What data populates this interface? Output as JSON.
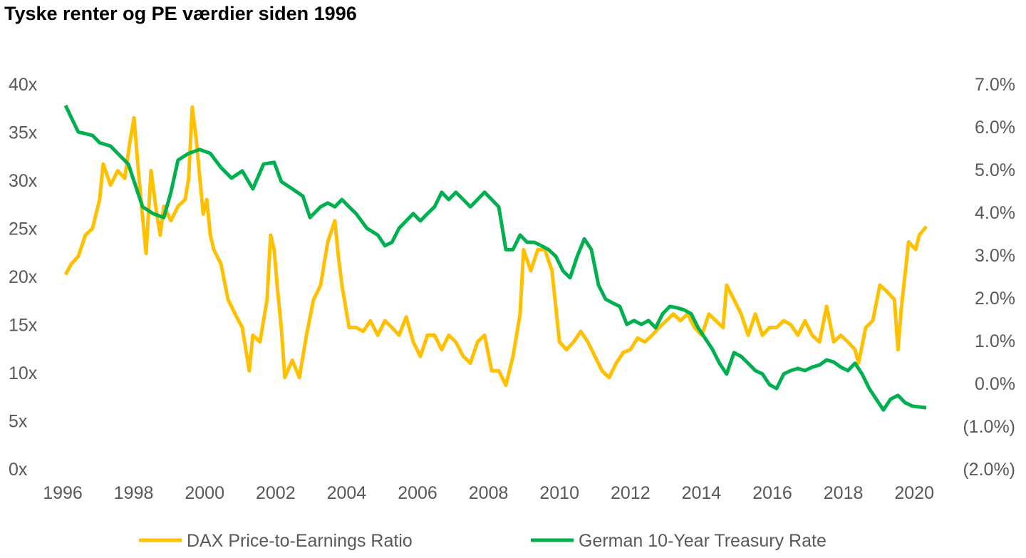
{
  "chart_data": {
    "type": "line",
    "title": "Tyske renter og PE værdier siden 1996",
    "xlabel": "",
    "ylabel": "",
    "xlim": [
      1996,
      2020.5
    ],
    "ylim_left": [
      0,
      40
    ],
    "ylim_right": [
      -2.0,
      7.0
    ],
    "grid": false,
    "legend_position": "bottom",
    "x_ticks": [
      "1996",
      "1998",
      "2000",
      "2002",
      "2004",
      "2006",
      "2008",
      "2010",
      "2012",
      "2014",
      "2016",
      "2018",
      "2020"
    ],
    "y_left_ticks": [
      "0x",
      "5x",
      "10x",
      "15x",
      "20x",
      "25x",
      "30x",
      "35x",
      "40x"
    ],
    "y_right_ticks": [
      "(2.0%)",
      "(1.0%)",
      "0.0%",
      "1.0%",
      "2.0%",
      "3.0%",
      "4.0%",
      "5.0%",
      "6.0%",
      "7.0%"
    ],
    "series": [
      {
        "name": "DAX Price-to-Earnings Ratio",
        "axis": "left",
        "color": "#FFC000",
        "points": [
          [
            1996.08,
            20.2
          ],
          [
            1996.24,
            21.3
          ],
          [
            1996.44,
            22.1
          ],
          [
            1996.64,
            24.3
          ],
          [
            1996.84,
            25.0
          ],
          [
            1997.04,
            28.0
          ],
          [
            1997.14,
            31.7
          ],
          [
            1997.35,
            29.5
          ],
          [
            1997.55,
            31.0
          ],
          [
            1997.75,
            30.2
          ],
          [
            1997.89,
            33.9
          ],
          [
            1998.01,
            36.5
          ],
          [
            1998.15,
            30.2
          ],
          [
            1998.35,
            22.4
          ],
          [
            1998.49,
            31.0
          ],
          [
            1998.65,
            26.5
          ],
          [
            1998.75,
            24.3
          ],
          [
            1998.85,
            27.3
          ],
          [
            1999.05,
            25.8
          ],
          [
            1999.25,
            27.3
          ],
          [
            1999.45,
            28.0
          ],
          [
            1999.55,
            30.2
          ],
          [
            1999.65,
            37.6
          ],
          [
            1999.75,
            34.7
          ],
          [
            1999.96,
            26.5
          ],
          [
            2000.06,
            28.0
          ],
          [
            2000.16,
            24.3
          ],
          [
            2000.26,
            22.8
          ],
          [
            2000.46,
            21.3
          ],
          [
            2000.66,
            17.6
          ],
          [
            2000.86,
            16.1
          ],
          [
            2001.06,
            14.7
          ],
          [
            2001.26,
            10.2
          ],
          [
            2001.36,
            13.9
          ],
          [
            2001.56,
            13.2
          ],
          [
            2001.76,
            17.6
          ],
          [
            2001.86,
            24.3
          ],
          [
            2001.96,
            22.8
          ],
          [
            2002.06,
            18.4
          ],
          [
            2002.16,
            14.7
          ],
          [
            2002.26,
            9.5
          ],
          [
            2002.47,
            11.3
          ],
          [
            2002.67,
            9.5
          ],
          [
            2002.87,
            13.9
          ],
          [
            2003.07,
            17.6
          ],
          [
            2003.27,
            19.1
          ],
          [
            2003.47,
            23.6
          ],
          [
            2003.67,
            25.8
          ],
          [
            2003.77,
            22.1
          ],
          [
            2003.87,
            19.1
          ],
          [
            2004.07,
            14.7
          ],
          [
            2004.27,
            14.7
          ],
          [
            2004.47,
            14.3
          ],
          [
            2004.67,
            15.4
          ],
          [
            2004.88,
            13.9
          ],
          [
            2005.08,
            15.4
          ],
          [
            2005.28,
            14.7
          ],
          [
            2005.48,
            13.9
          ],
          [
            2005.68,
            15.8
          ],
          [
            2005.88,
            13.2
          ],
          [
            2006.08,
            11.7
          ],
          [
            2006.28,
            13.9
          ],
          [
            2006.48,
            13.9
          ],
          [
            2006.68,
            12.4
          ],
          [
            2006.88,
            13.9
          ],
          [
            2007.08,
            13.2
          ],
          [
            2007.29,
            11.7
          ],
          [
            2007.49,
            11.0
          ],
          [
            2007.69,
            13.2
          ],
          [
            2007.89,
            13.9
          ],
          [
            2008.09,
            10.2
          ],
          [
            2008.29,
            10.2
          ],
          [
            2008.49,
            8.7
          ],
          [
            2008.69,
            11.7
          ],
          [
            2008.89,
            16.1
          ],
          [
            2008.99,
            22.8
          ],
          [
            2009.19,
            20.6
          ],
          [
            2009.39,
            22.8
          ],
          [
            2009.59,
            22.8
          ],
          [
            2009.79,
            20.6
          ],
          [
            2010.0,
            13.2
          ],
          [
            2010.2,
            12.4
          ],
          [
            2010.4,
            13.2
          ],
          [
            2010.6,
            14.3
          ],
          [
            2010.8,
            13.2
          ],
          [
            2011.0,
            11.7
          ],
          [
            2011.2,
            10.2
          ],
          [
            2011.4,
            9.5
          ],
          [
            2011.6,
            11.0
          ],
          [
            2011.8,
            12.1
          ],
          [
            2012.0,
            12.4
          ],
          [
            2012.2,
            13.6
          ],
          [
            2012.41,
            13.2
          ],
          [
            2012.61,
            13.9
          ],
          [
            2012.81,
            14.7
          ],
          [
            2013.01,
            15.4
          ],
          [
            2013.21,
            16.1
          ],
          [
            2013.41,
            15.4
          ],
          [
            2013.61,
            16.1
          ],
          [
            2013.81,
            14.7
          ],
          [
            2014.01,
            13.9
          ],
          [
            2014.21,
            16.1
          ],
          [
            2014.41,
            15.4
          ],
          [
            2014.61,
            14.7
          ],
          [
            2014.71,
            19.1
          ],
          [
            2014.92,
            17.6
          ],
          [
            2015.12,
            16.1
          ],
          [
            2015.32,
            13.9
          ],
          [
            2015.52,
            16.1
          ],
          [
            2015.72,
            13.9
          ],
          [
            2015.92,
            14.7
          ],
          [
            2016.12,
            14.7
          ],
          [
            2016.32,
            15.4
          ],
          [
            2016.52,
            15.0
          ],
          [
            2016.72,
            13.9
          ],
          [
            2016.92,
            15.4
          ],
          [
            2017.12,
            13.9
          ],
          [
            2017.33,
            13.2
          ],
          [
            2017.53,
            16.9
          ],
          [
            2017.73,
            13.2
          ],
          [
            2017.93,
            13.9
          ],
          [
            2018.13,
            13.2
          ],
          [
            2018.33,
            12.4
          ],
          [
            2018.43,
            11.0
          ],
          [
            2018.63,
            14.7
          ],
          [
            2018.83,
            15.4
          ],
          [
            2019.03,
            19.1
          ],
          [
            2019.24,
            18.4
          ],
          [
            2019.44,
            17.6
          ],
          [
            2019.54,
            12.4
          ],
          [
            2019.64,
            16.9
          ],
          [
            2019.84,
            23.6
          ],
          [
            2020.04,
            22.8
          ],
          [
            2020.14,
            24.3
          ],
          [
            2020.34,
            25.2
          ]
        ]
      },
      {
        "name": "German 10-Year Treasury Rate",
        "axis": "right",
        "color": "#00B050",
        "points": [
          [
            1996.08,
            6.5
          ],
          [
            1996.24,
            6.22
          ],
          [
            1996.44,
            5.88
          ],
          [
            1996.84,
            5.8
          ],
          [
            1997.04,
            5.63
          ],
          [
            1997.35,
            5.55
          ],
          [
            1997.55,
            5.38
          ],
          [
            1997.85,
            5.13
          ],
          [
            1998.05,
            4.63
          ],
          [
            1998.25,
            4.13
          ],
          [
            1998.55,
            3.97
          ],
          [
            1998.85,
            3.88
          ],
          [
            1999.05,
            4.47
          ],
          [
            1999.25,
            5.22
          ],
          [
            1999.55,
            5.38
          ],
          [
            1999.86,
            5.47
          ],
          [
            2000.16,
            5.38
          ],
          [
            2000.46,
            5.05
          ],
          [
            2000.76,
            4.8
          ],
          [
            2001.06,
            4.97
          ],
          [
            2001.36,
            4.55
          ],
          [
            2001.66,
            5.13
          ],
          [
            2001.96,
            5.17
          ],
          [
            2002.16,
            4.72
          ],
          [
            2002.47,
            4.55
          ],
          [
            2002.77,
            4.38
          ],
          [
            2002.97,
            3.88
          ],
          [
            2003.27,
            4.13
          ],
          [
            2003.47,
            4.22
          ],
          [
            2003.67,
            4.13
          ],
          [
            2003.87,
            4.3
          ],
          [
            2004.07,
            4.13
          ],
          [
            2004.27,
            3.97
          ],
          [
            2004.57,
            3.63
          ],
          [
            2004.88,
            3.47
          ],
          [
            2005.08,
            3.22
          ],
          [
            2005.28,
            3.3
          ],
          [
            2005.48,
            3.63
          ],
          [
            2005.68,
            3.8
          ],
          [
            2005.88,
            3.97
          ],
          [
            2006.08,
            3.8
          ],
          [
            2006.28,
            3.97
          ],
          [
            2006.48,
            4.13
          ],
          [
            2006.68,
            4.47
          ],
          [
            2006.88,
            4.3
          ],
          [
            2007.08,
            4.47
          ],
          [
            2007.29,
            4.3
          ],
          [
            2007.49,
            4.13
          ],
          [
            2007.69,
            4.3
          ],
          [
            2007.89,
            4.47
          ],
          [
            2008.09,
            4.3
          ],
          [
            2008.29,
            4.13
          ],
          [
            2008.49,
            3.13
          ],
          [
            2008.69,
            3.13
          ],
          [
            2008.89,
            3.47
          ],
          [
            2009.09,
            3.3
          ],
          [
            2009.29,
            3.3
          ],
          [
            2009.49,
            3.22
          ],
          [
            2009.69,
            3.13
          ],
          [
            2009.9,
            2.97
          ],
          [
            2010.1,
            2.63
          ],
          [
            2010.3,
            2.47
          ],
          [
            2010.5,
            2.97
          ],
          [
            2010.7,
            3.38
          ],
          [
            2010.9,
            3.13
          ],
          [
            2011.1,
            2.3
          ],
          [
            2011.3,
            1.97
          ],
          [
            2011.5,
            1.88
          ],
          [
            2011.7,
            1.8
          ],
          [
            2011.9,
            1.38
          ],
          [
            2012.1,
            1.47
          ],
          [
            2012.31,
            1.38
          ],
          [
            2012.51,
            1.47
          ],
          [
            2012.71,
            1.3
          ],
          [
            2012.91,
            1.63
          ],
          [
            2013.11,
            1.8
          ],
          [
            2013.31,
            1.77
          ],
          [
            2013.51,
            1.72
          ],
          [
            2013.71,
            1.63
          ],
          [
            2013.91,
            1.3
          ],
          [
            2014.11,
            1.05
          ],
          [
            2014.31,
            0.8
          ],
          [
            2014.51,
            0.47
          ],
          [
            2014.71,
            0.22
          ],
          [
            2014.92,
            0.72
          ],
          [
            2015.12,
            0.63
          ],
          [
            2015.32,
            0.47
          ],
          [
            2015.52,
            0.3
          ],
          [
            2015.72,
            0.22
          ],
          [
            2015.92,
            -0.03
          ],
          [
            2016.12,
            -0.12
          ],
          [
            2016.32,
            0.22
          ],
          [
            2016.52,
            0.3
          ],
          [
            2016.72,
            0.35
          ],
          [
            2016.92,
            0.3
          ],
          [
            2017.12,
            0.38
          ],
          [
            2017.33,
            0.43
          ],
          [
            2017.53,
            0.55
          ],
          [
            2017.73,
            0.5
          ],
          [
            2017.93,
            0.38
          ],
          [
            2018.13,
            0.3
          ],
          [
            2018.33,
            0.47
          ],
          [
            2018.53,
            0.22
          ],
          [
            2018.73,
            -0.12
          ],
          [
            2018.93,
            -0.37
          ],
          [
            2019.13,
            -0.62
          ],
          [
            2019.33,
            -0.37
          ],
          [
            2019.54,
            -0.28
          ],
          [
            2019.74,
            -0.45
          ],
          [
            2019.94,
            -0.53
          ],
          [
            2020.34,
            -0.57
          ]
        ]
      }
    ]
  }
}
